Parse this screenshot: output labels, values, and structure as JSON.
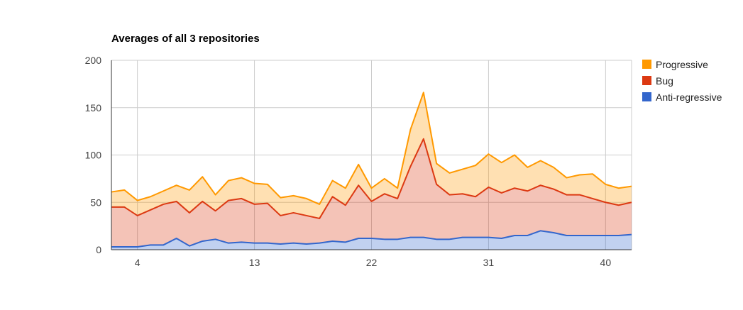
{
  "chart_data": {
    "type": "area",
    "title": "Averages of all 3 repositories",
    "xlabel": "",
    "ylabel": "",
    "stacked": true,
    "x": [
      2,
      3,
      4,
      5,
      6,
      7,
      8,
      9,
      10,
      11,
      12,
      13,
      14,
      15,
      16,
      17,
      18,
      19,
      20,
      21,
      22,
      23,
      24,
      25,
      26,
      27,
      28,
      29,
      30,
      31,
      32,
      33,
      34,
      35,
      36,
      37,
      38,
      39,
      40,
      41,
      42
    ],
    "xlim": [
      2,
      42
    ],
    "ylim": [
      0,
      200
    ],
    "x_ticks": [
      4,
      13,
      22,
      31,
      40
    ],
    "y_ticks": [
      0,
      50,
      100,
      150,
      200
    ],
    "grid": true,
    "legend_position": "right",
    "series": [
      {
        "name": "Anti-regressive",
        "color": "#3366cc",
        "values": [
          3,
          3,
          3,
          5,
          5,
          12,
          4,
          9,
          11,
          7,
          8,
          7,
          7,
          6,
          7,
          6,
          7,
          9,
          8,
          12,
          12,
          11,
          11,
          13,
          13,
          11,
          11,
          13,
          13,
          13,
          12,
          15,
          15,
          20,
          18,
          15,
          15,
          15,
          15,
          15,
          16
        ]
      },
      {
        "name": "Bug",
        "color": "#dc3912",
        "values": [
          42,
          42,
          33,
          37,
          43,
          39,
          35,
          42,
          30,
          45,
          46,
          41,
          42,
          30,
          32,
          30,
          26,
          47,
          39,
          56,
          39,
          48,
          43,
          75,
          104,
          58,
          47,
          46,
          43,
          53,
          48,
          50,
          47,
          48,
          46,
          43,
          43,
          39,
          35,
          32,
          34
        ]
      },
      {
        "name": "Progressive",
        "color": "#ff9900",
        "values": [
          16,
          18,
          16,
          14,
          14,
          17,
          24,
          26,
          17,
          21,
          22,
          22,
          20,
          19,
          18,
          18,
          15,
          17,
          18,
          22,
          14,
          16,
          11,
          39,
          49,
          22,
          23,
          26,
          33,
          35,
          32,
          35,
          25,
          26,
          23,
          18,
          21,
          26,
          19,
          18,
          17
        ]
      }
    ]
  }
}
